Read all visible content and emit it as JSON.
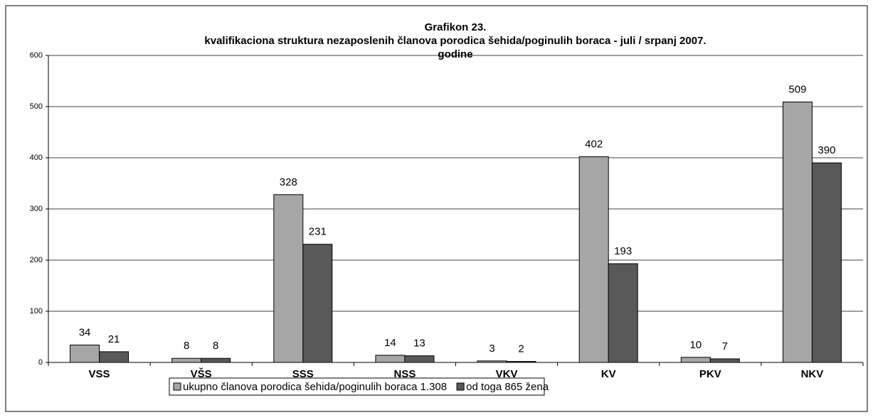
{
  "chart_data": {
    "type": "bar",
    "title": [
      "Grafikon 23.",
      "kvalifikaciona struktura nezaposlenih članova porodica šehida/poginulih boraca - juli / srpanj 2007.",
      "godine"
    ],
    "categories": [
      "VSS",
      "VŠS",
      "SSS",
      "NSS",
      "VKV",
      "KV",
      "PKV",
      "NKV"
    ],
    "series": [
      {
        "name": "ukupno članova porodica šehida/poginulih boraca 1.308",
        "color": "#a6a6a6",
        "values": [
          34,
          8,
          328,
          14,
          3,
          402,
          10,
          509
        ]
      },
      {
        "name": "od toga 865 žena",
        "color": "#595959",
        "values": [
          21,
          8,
          231,
          13,
          2,
          193,
          7,
          390
        ]
      }
    ],
    "ylim": [
      0,
      600
    ],
    "yticks": [
      0,
      100,
      200,
      300,
      400,
      500,
      600
    ],
    "grid": true,
    "legend": "bottom"
  }
}
